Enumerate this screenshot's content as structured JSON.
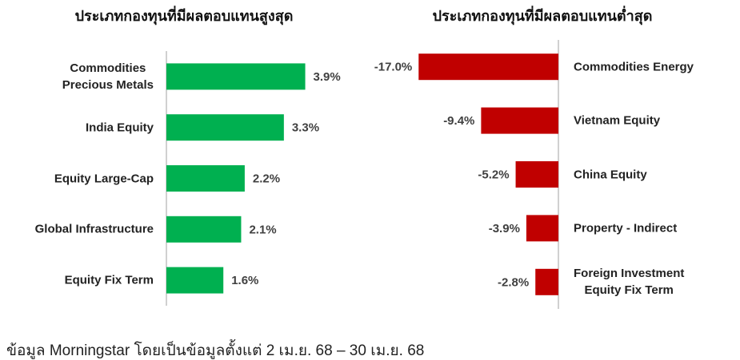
{
  "chart_data": [
    {
      "type": "bar",
      "orientation": "horizontal",
      "title": "ประเภทกองทุนที่มีผลตอบแทนสูงสุด",
      "categories": [
        "Commodities\nPrecious Metals",
        "India Equity",
        "Equity Large-Cap",
        "Global Infrastructure",
        "Equity Fix Term"
      ],
      "values": [
        3.9,
        3.3,
        2.2,
        2.1,
        1.6
      ],
      "value_labels": [
        "3.9%",
        "3.3%",
        "2.2%",
        "2.1%",
        "1.6%"
      ],
      "color": "#00b050",
      "xlim": [
        0,
        4
      ]
    },
    {
      "type": "bar",
      "orientation": "horizontal",
      "title": "ประเภทกองทุนที่มีผลตอบแทนต่ำสุด",
      "categories": [
        "Commodities Energy",
        "Vietnam Equity",
        "China Equity",
        "Property - Indirect",
        "Foreign Investment\nEquity Fix Term"
      ],
      "values": [
        -17.0,
        -9.4,
        -5.2,
        -3.9,
        -2.8
      ],
      "value_labels": [
        "-17.0%",
        "-9.4%",
        "-5.2%",
        "-3.9%",
        "-2.8%"
      ],
      "color": "#c00000",
      "xlim": [
        -18,
        0
      ]
    }
  ],
  "footnote": "ข้อมูล Morningstar โดยเป็นข้อมูลตั้งแต่ 2 เม.ย. 68 – 30 เม.ย. 68"
}
